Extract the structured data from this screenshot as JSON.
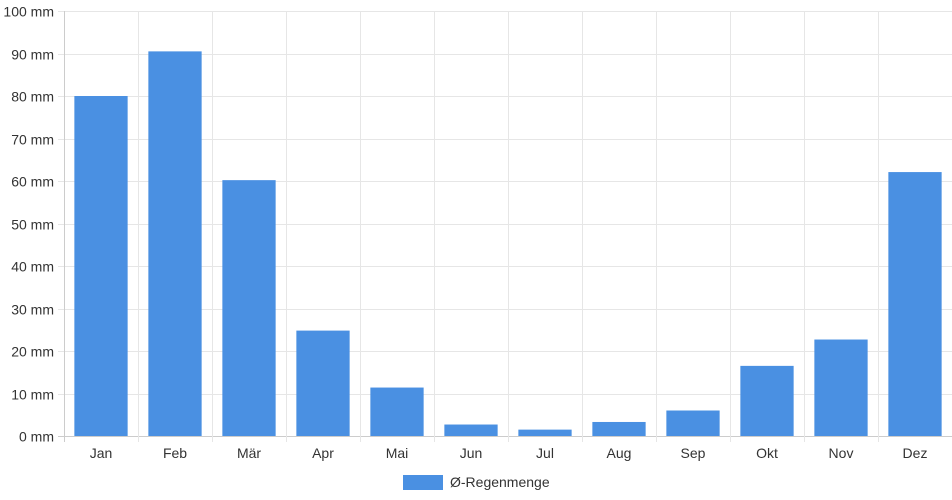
{
  "chart_data": {
    "type": "bar",
    "categories": [
      "Jan",
      "Feb",
      "Mär",
      "Apr",
      "Mai",
      "Jun",
      "Jul",
      "Aug",
      "Sep",
      "Okt",
      "Nov",
      "Dez"
    ],
    "series": [
      {
        "name": "Ø-Regenmenge",
        "values": [
          80,
          90.5,
          60.2,
          24.8,
          11.4,
          2.7,
          1.5,
          3.3,
          6.0,
          16.5,
          22.7,
          62.1
        ],
        "color": "#4a90e2"
      }
    ],
    "y_ticks": [
      "0 mm",
      "10 mm",
      "20 mm",
      "30 mm",
      "40 mm",
      "50 mm",
      "60 mm",
      "70 mm",
      "80 mm",
      "90 mm",
      "100 mm"
    ],
    "ylim": [
      0,
      100
    ],
    "grid": true,
    "legend_position": "bottom",
    "grid_color": "#e6e6e6",
    "axis_color": "#cccccc"
  }
}
